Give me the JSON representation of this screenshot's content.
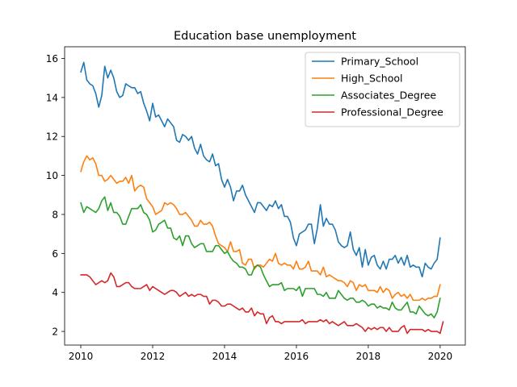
{
  "chart_data": {
    "type": "line",
    "title": "Education base unemployment",
    "xlabel": "",
    "ylabel": "",
    "xlim": [
      2009.55,
      2020.7
    ],
    "ylim": [
      1.3,
      16.6
    ],
    "xticks": [
      2010,
      2012,
      2014,
      2016,
      2018,
      2020
    ],
    "yticks": [
      2,
      4,
      6,
      8,
      10,
      12,
      14,
      16
    ],
    "grid": false,
    "legend_position": "top-right",
    "start_date": "2010-01",
    "end_date": "2020-03",
    "series": [
      {
        "name": "Primary_School",
        "color": "#1f77b4",
        "values": [
          15.3,
          15.8,
          14.9,
          14.7,
          14.6,
          14.2,
          13.5,
          14.1,
          15.6,
          15.0,
          15.4,
          15.0,
          14.3,
          14.0,
          14.1,
          14.7,
          14.6,
          14.5,
          14.5,
          14.2,
          14.3,
          13.7,
          13.3,
          12.8,
          13.7,
          13.0,
          13.1,
          12.8,
          12.5,
          12.9,
          12.7,
          12.5,
          11.8,
          11.7,
          12.1,
          12.0,
          11.8,
          12.0,
          11.4,
          11.1,
          11.6,
          11.0,
          10.8,
          10.7,
          11.1,
          10.5,
          10.6,
          9.8,
          9.4,
          9.8,
          9.4,
          8.7,
          9.2,
          9.2,
          9.5,
          9.0,
          8.7,
          8.4,
          8.1,
          8.6,
          8.6,
          8.4,
          8.2,
          8.5,
          8.4,
          8.7,
          8.3,
          8.5,
          7.9,
          7.9,
          7.6,
          6.8,
          6.4,
          7.0,
          7.1,
          7.2,
          7.5,
          7.5,
          6.5,
          7.3,
          8.5,
          7.4,
          7.8,
          7.5,
          7.5,
          7.2,
          6.6,
          6.4,
          6.3,
          6.4,
          7.1,
          6.2,
          5.9,
          6.3,
          5.3,
          6.2,
          5.4,
          5.8,
          5.9,
          5.4,
          5.2,
          5.6,
          5.2,
          5.7,
          5.7,
          5.9,
          5.5,
          5.8,
          5.4,
          5.9,
          5.3,
          5.4,
          5.3,
          5.3,
          4.8,
          5.5,
          5.3,
          5.2,
          5.5,
          5.7,
          6.8
        ]
      },
      {
        "name": "High_School",
        "color": "#ff7f0e",
        "values": [
          10.2,
          10.7,
          11.0,
          10.8,
          10.9,
          10.6,
          10.0,
          10.0,
          9.7,
          9.8,
          10.0,
          9.8,
          9.6,
          9.7,
          9.7,
          9.9,
          9.6,
          10.0,
          9.2,
          9.4,
          9.5,
          9.4,
          8.8,
          8.6,
          8.4,
          8.0,
          8.1,
          8.2,
          8.6,
          8.5,
          8.6,
          8.5,
          8.3,
          8.0,
          8.0,
          8.1,
          7.9,
          7.7,
          7.4,
          7.4,
          7.7,
          7.5,
          7.5,
          7.6,
          7.4,
          6.9,
          6.5,
          6.4,
          6.3,
          6.1,
          6.6,
          6.1,
          6.1,
          6.2,
          5.5,
          5.4,
          5.7,
          5.7,
          5.2,
          5.4,
          5.4,
          5.3,
          5.5,
          5.7,
          5.6,
          6.0,
          5.5,
          5.4,
          5.5,
          5.4,
          5.4,
          5.2,
          5.6,
          5.2,
          5.2,
          5.3,
          5.6,
          5.1,
          5.1,
          5.1,
          4.9,
          5.3,
          4.8,
          4.9,
          4.8,
          4.7,
          4.6,
          4.6,
          4.5,
          4.3,
          4.6,
          4.5,
          4.1,
          4.4,
          4.3,
          4.4,
          4.1,
          4.1,
          4.1,
          4.0,
          4.3,
          4.0,
          4.2,
          4.1,
          3.7,
          3.9,
          4.0,
          3.8,
          3.9,
          3.7,
          3.9,
          3.6,
          3.6,
          3.6,
          3.7,
          3.6,
          3.7,
          3.7,
          3.8,
          3.8,
          4.4
        ]
      },
      {
        "name": "Associates_Degree",
        "color": "#2ca02c",
        "values": [
          8.6,
          8.1,
          8.4,
          8.3,
          8.2,
          8.1,
          8.3,
          8.7,
          8.9,
          8.2,
          8.6,
          8.1,
          8.1,
          7.9,
          7.5,
          7.5,
          7.9,
          8.3,
          8.3,
          8.3,
          8.5,
          8.1,
          8.0,
          7.7,
          7.1,
          7.2,
          7.5,
          7.6,
          7.7,
          7.3,
          7.3,
          6.8,
          6.7,
          6.9,
          6.4,
          6.9,
          6.9,
          6.5,
          6.3,
          6.4,
          6.5,
          6.5,
          6.1,
          6.1,
          6.1,
          6.4,
          6.4,
          6.2,
          6.0,
          6.1,
          5.8,
          5.6,
          5.5,
          5.3,
          5.3,
          5.2,
          4.9,
          4.9,
          5.3,
          5.4,
          5.3,
          4.9,
          4.6,
          4.3,
          4.4,
          4.4,
          4.4,
          4.5,
          4.1,
          4.2,
          4.2,
          4.2,
          4.1,
          4.3,
          3.8,
          4.2,
          4.2,
          4.2,
          4.2,
          3.9,
          3.9,
          3.8,
          4.0,
          3.7,
          3.7,
          3.7,
          4.1,
          3.9,
          3.7,
          3.6,
          3.7,
          3.7,
          3.5,
          3.5,
          3.6,
          3.5,
          3.3,
          3.4,
          3.4,
          3.2,
          3.3,
          3.2,
          3.2,
          3.1,
          3.5,
          3.2,
          3.1,
          3.1,
          3.3,
          3.5,
          3.0,
          3.0,
          2.9,
          3.3,
          3.1,
          2.9,
          2.8,
          2.9,
          2.7,
          3.0,
          3.7
        ]
      },
      {
        "name": "Professional_Degree",
        "color": "#d62728",
        "values": [
          4.9,
          4.9,
          4.9,
          4.8,
          4.6,
          4.4,
          4.5,
          4.6,
          4.5,
          4.6,
          5.0,
          4.8,
          4.3,
          4.3,
          4.4,
          4.5,
          4.5,
          4.3,
          4.2,
          4.2,
          4.2,
          4.3,
          4.4,
          4.1,
          4.3,
          4.2,
          4.1,
          4.0,
          3.9,
          4.0,
          4.1,
          4.1,
          4.0,
          3.8,
          3.9,
          4.0,
          3.8,
          3.9,
          3.8,
          3.9,
          3.9,
          3.8,
          3.8,
          3.4,
          3.6,
          3.6,
          3.5,
          3.3,
          3.3,
          3.4,
          3.4,
          3.3,
          3.2,
          3.1,
          3.2,
          3.0,
          3.0,
          3.2,
          2.8,
          3.0,
          2.9,
          2.9,
          2.4,
          2.7,
          2.8,
          2.5,
          2.5,
          2.4,
          2.5,
          2.5,
          2.5,
          2.5,
          2.5,
          2.5,
          2.6,
          2.4,
          2.5,
          2.5,
          2.5,
          2.5,
          2.6,
          2.5,
          2.6,
          2.4,
          2.5,
          2.4,
          2.3,
          2.4,
          2.5,
          2.3,
          2.3,
          2.3,
          2.4,
          2.3,
          2.2,
          2.0,
          2.2,
          2.1,
          2.2,
          2.1,
          2.2,
          2.2,
          2.0,
          2.2,
          2.0,
          2.0,
          2.0,
          2.2,
          2.3,
          1.9,
          2.1,
          2.1,
          2.1,
          2.1,
          2.1,
          2.0,
          2.1,
          2.0,
          2.0,
          2.0,
          1.9,
          2.5
        ]
      }
    ]
  }
}
